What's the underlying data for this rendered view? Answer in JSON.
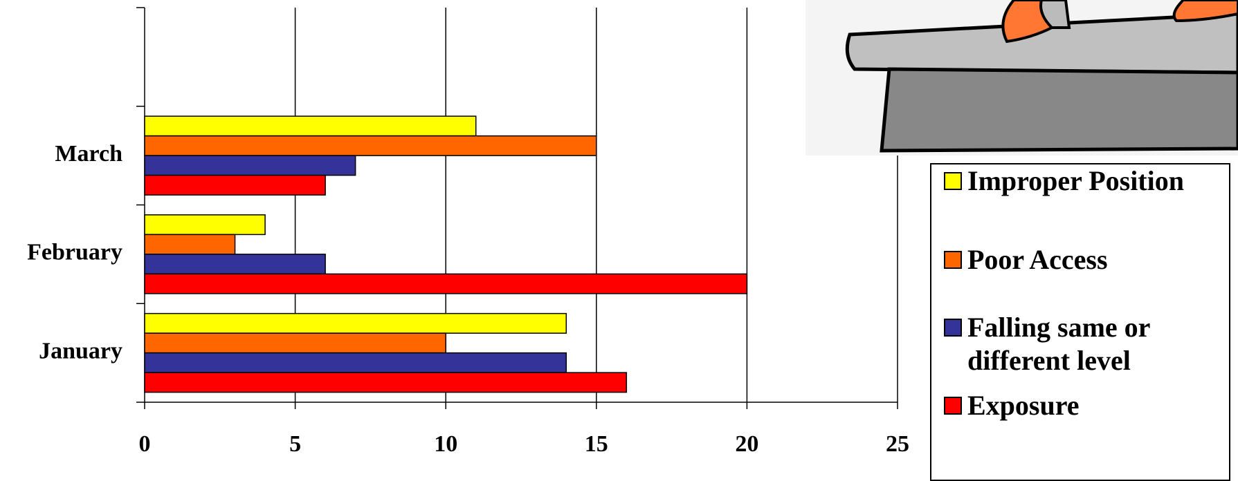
{
  "chart_data": {
    "type": "bar",
    "orientation": "horizontal",
    "categories": [
      "January",
      "February",
      "March",
      null
    ],
    "series": [
      {
        "name": "Improper Position",
        "color": "#ffff00",
        "values": [
          14,
          4,
          11,
          null
        ]
      },
      {
        "name": "Poor Access",
        "color": "#ff6600",
        "values": [
          10,
          3,
          15,
          null
        ]
      },
      {
        "name": "Falling same or different level",
        "color": "#333399",
        "values": [
          14,
          6,
          7,
          null
        ]
      },
      {
        "name": "Exposure",
        "color": "#ff0000",
        "values": [
          16,
          20,
          6,
          null
        ]
      }
    ],
    "xlim": [
      0,
      25
    ],
    "xticks": [
      0,
      5,
      10,
      15,
      20,
      25
    ],
    "grid": true
  }
}
